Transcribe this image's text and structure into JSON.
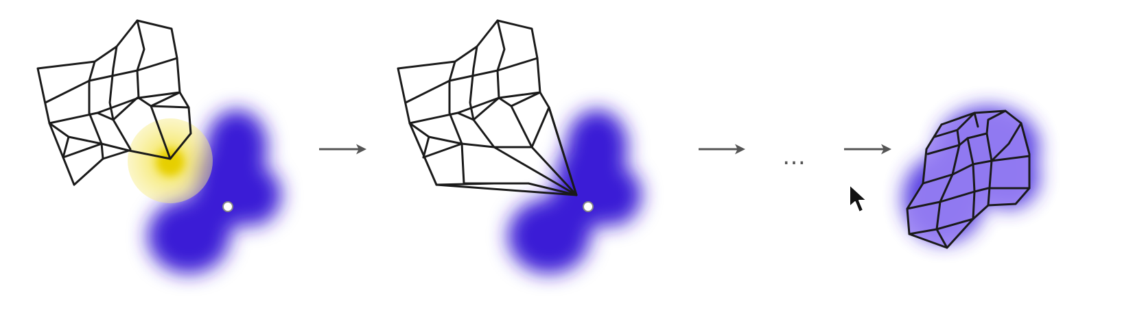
{
  "colors": {
    "background": "#ffffff",
    "target_blob": "#3a1fd6",
    "target_fill_final": "#8a6ff0",
    "brush_highlight": "#f5e24a",
    "brush_core": "#e8d400",
    "mesh_stroke": "#1a1a1a",
    "arrow": "#555555"
  },
  "icons": {
    "step_arrow": "right-arrow-icon",
    "cursor": "mouse-pointer-icon",
    "target_point": "target-point-icon"
  },
  "ellipsis": {
    "text": "…"
  }
}
